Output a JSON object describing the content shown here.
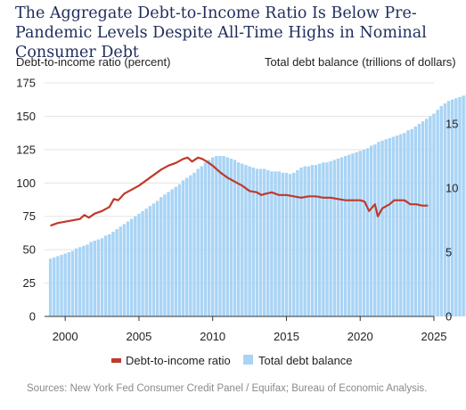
{
  "chart_data": {
    "type": "bar",
    "title": "The Aggregate Debt-to-Income Ratio Is Below Pre-Pandemic Levels Despite All-Time Highs in Nominal Consumer Debt",
    "left_axis_label": "Debt-to-income ratio (percent)",
    "right_axis_label": "Total debt balance (trillions of dollars)",
    "source": "Sources: New York Fed Consumer Credit Panel / Equifax; Bureau of Economic Analysis.",
    "xlim": [
      1998.6,
      2025
    ],
    "xticks": [
      "2000",
      "2005",
      "2010",
      "2015",
      "2020",
      "2025"
    ],
    "ylim_left": [
      0,
      175
    ],
    "yticks_left": [
      "0",
      "25",
      "50",
      "75",
      "100",
      "125",
      "150",
      "175"
    ],
    "ylim_right": [
      0,
      18.2
    ],
    "yticks_right": [
      "0",
      "5",
      "10",
      "15"
    ],
    "grid": "horizontal",
    "legend_position": "bottom",
    "colors": {
      "line": "#c0392b",
      "bars": "#a9d4f5",
      "grid": "#e3e3e3",
      "axis": "#333333"
    },
    "series": [
      {
        "name": "Debt-to-income ratio",
        "type": "line",
        "axis": "left",
        "points": [
          [
            1999.0,
            68
          ],
          [
            1999.5,
            70
          ],
          [
            2000.0,
            71
          ],
          [
            2000.5,
            72
          ],
          [
            2001.0,
            73
          ],
          [
            2001.3,
            76
          ],
          [
            2001.6,
            74
          ],
          [
            2002.0,
            77
          ],
          [
            2002.5,
            79
          ],
          [
            2003.0,
            82
          ],
          [
            2003.3,
            88
          ],
          [
            2003.6,
            87
          ],
          [
            2004.0,
            92
          ],
          [
            2004.5,
            95
          ],
          [
            2005.0,
            98
          ],
          [
            2005.5,
            102
          ],
          [
            2006.0,
            106
          ],
          [
            2006.5,
            110
          ],
          [
            2007.0,
            113
          ],
          [
            2007.5,
            115
          ],
          [
            2008.0,
            118
          ],
          [
            2008.3,
            119
          ],
          [
            2008.6,
            116
          ],
          [
            2009.0,
            119
          ],
          [
            2009.3,
            118
          ],
          [
            2009.6,
            116
          ],
          [
            2010.0,
            113
          ],
          [
            2010.5,
            108
          ],
          [
            2011.0,
            104
          ],
          [
            2011.5,
            101
          ],
          [
            2012.0,
            98
          ],
          [
            2012.5,
            94
          ],
          [
            2013.0,
            93
          ],
          [
            2013.3,
            91
          ],
          [
            2013.6,
            92
          ],
          [
            2014.0,
            93
          ],
          [
            2014.5,
            91
          ],
          [
            2015.0,
            91
          ],
          [
            2015.5,
            90
          ],
          [
            2016.0,
            89
          ],
          [
            2016.5,
            90
          ],
          [
            2017.0,
            90
          ],
          [
            2017.5,
            89
          ],
          [
            2018.0,
            89
          ],
          [
            2018.5,
            88
          ],
          [
            2019.0,
            87
          ],
          [
            2019.5,
            87
          ],
          [
            2020.0,
            87
          ],
          [
            2020.3,
            86
          ],
          [
            2020.6,
            79
          ],
          [
            2021.0,
            84
          ],
          [
            2021.2,
            75
          ],
          [
            2021.5,
            81
          ],
          [
            2022.0,
            84
          ],
          [
            2022.3,
            87
          ],
          [
            2022.6,
            87
          ],
          [
            2023.0,
            87
          ],
          [
            2023.4,
            84
          ],
          [
            2023.8,
            84
          ],
          [
            2024.2,
            83
          ],
          [
            2024.6,
            83
          ]
        ]
      },
      {
        "name": "Total debt balance",
        "type": "bar",
        "axis": "right",
        "x_start": 1999.0,
        "x_step": 0.25,
        "values": [
          4.5,
          4.6,
          4.7,
          4.8,
          4.9,
          5.0,
          5.1,
          5.3,
          5.4,
          5.5,
          5.6,
          5.8,
          5.9,
          6.0,
          6.1,
          6.3,
          6.4,
          6.6,
          6.8,
          7.0,
          7.2,
          7.4,
          7.6,
          7.8,
          8.0,
          8.2,
          8.4,
          8.6,
          8.8,
          9.0,
          9.3,
          9.5,
          9.7,
          9.9,
          10.1,
          10.3,
          10.6,
          10.8,
          11.0,
          11.2,
          11.5,
          11.7,
          12.0,
          12.2,
          12.4,
          12.5,
          12.5,
          12.5,
          12.4,
          12.3,
          12.2,
          12.0,
          11.9,
          11.8,
          11.7,
          11.6,
          11.5,
          11.5,
          11.5,
          11.4,
          11.3,
          11.3,
          11.3,
          11.2,
          11.2,
          11.1,
          11.2,
          11.4,
          11.6,
          11.7,
          11.7,
          11.8,
          11.8,
          11.9,
          12.0,
          12.0,
          12.1,
          12.2,
          12.3,
          12.4,
          12.5,
          12.6,
          12.7,
          12.8,
          12.9,
          13.0,
          13.1,
          13.3,
          13.4,
          13.6,
          13.7,
          13.8,
          13.9,
          14.0,
          14.1,
          14.2,
          14.3,
          14.5,
          14.6,
          14.8,
          15.0,
          15.2,
          15.4,
          15.6,
          15.8,
          16.1,
          16.4,
          16.6,
          16.8,
          16.9,
          17.0,
          17.1,
          17.2,
          17.3,
          17.5,
          17.6,
          17.7,
          17.8,
          17.9,
          18.0
        ]
      }
    ]
  }
}
